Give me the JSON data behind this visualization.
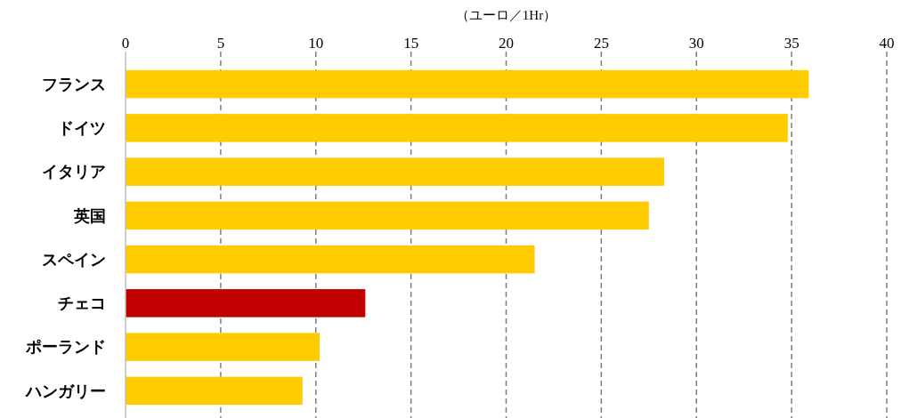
{
  "chart_data": {
    "type": "bar",
    "orientation": "horizontal",
    "xlabel": "（ユーロ／1Hr）",
    "categories": [
      "フランス",
      "ドイツ",
      "イタリア",
      "英国",
      "スペイン",
      "チェコ",
      "ポーランド",
      "ハンガリー"
    ],
    "values": [
      35.9,
      34.8,
      28.3,
      27.5,
      21.5,
      12.6,
      10.2,
      9.3
    ],
    "colors": [
      "#ffcc00",
      "#ffcc00",
      "#ffcc00",
      "#ffcc00",
      "#ffcc00",
      "#c00000",
      "#ffcc00",
      "#ffcc00"
    ],
    "xlim": [
      0,
      40
    ],
    "xticks": [
      0,
      5,
      10,
      15,
      20,
      25,
      30,
      35,
      40
    ],
    "grid": "x"
  }
}
